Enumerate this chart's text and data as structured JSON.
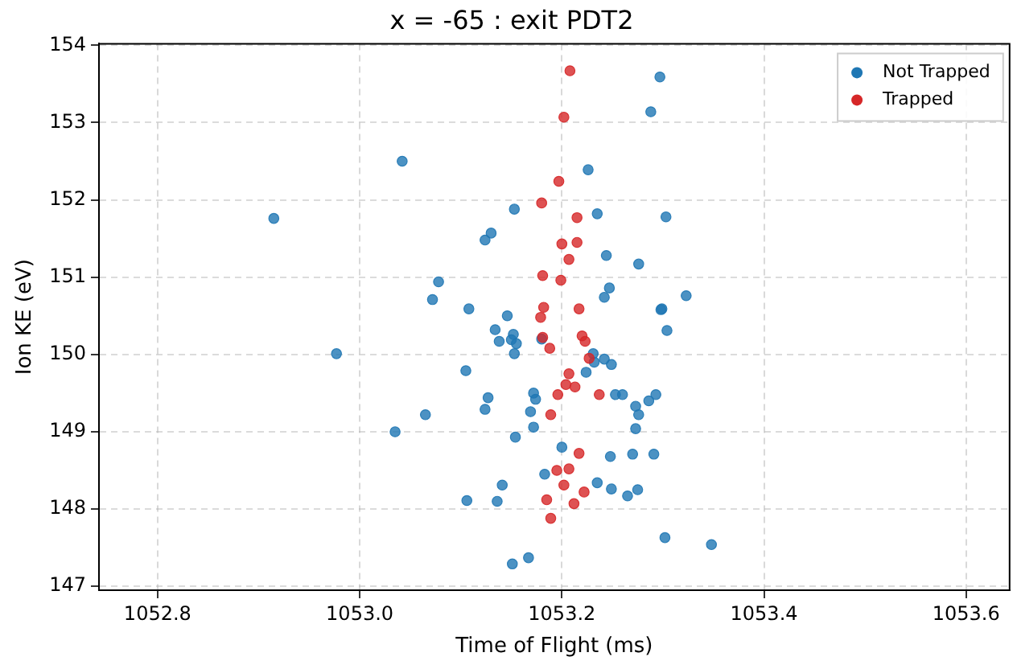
{
  "chart_data": {
    "type": "scatter",
    "title": "x = -65 : exit PDT2",
    "xlabel": "Time of Flight (ms)",
    "ylabel": "Ion KE (eV)",
    "xlim": [
      1052.742,
      1053.643
    ],
    "ylim": [
      146.95,
      154.02
    ],
    "xticks": [
      1052.8,
      {
        "value": 1053.0,
        "label": "1053.0"
      },
      1053.2,
      1053.4,
      1053.6
    ],
    "yticks": [
      147,
      148,
      149,
      150,
      151,
      152,
      153,
      154
    ],
    "grid": true,
    "legend": "top right",
    "marker": "circle",
    "series": [
      {
        "name": "Not Trapped",
        "color": "#1f77b4",
        "x": [
          1052.915,
          1053.042,
          1053.226,
          1053.153,
          1053.235,
          1053.13,
          1053.124,
          1053.244,
          1053.276,
          1053.078,
          1053.247,
          1053.242,
          1053.072,
          1053.108,
          1053.146,
          1053.297,
          1053.288,
          1053.303,
          1053.323,
          1053.299,
          1053.298,
          1053.134,
          1053.152,
          1053.138,
          1053.15,
          1053.155,
          1053.153,
          1053.18,
          1052.977,
          1053.231,
          1053.232,
          1053.242,
          1053.249,
          1053.105,
          1053.224,
          1053.172,
          1053.174,
          1053.127,
          1053.124,
          1053.169,
          1053.065,
          1053.172,
          1053.035,
          1053.154,
          1053.253,
          1053.26,
          1053.273,
          1053.276,
          1053.273,
          1053.286,
          1053.293,
          1053.2,
          1053.248,
          1053.27,
          1053.291,
          1053.183,
          1053.141,
          1053.235,
          1053.249,
          1053.265,
          1053.275,
          1053.106,
          1053.136,
          1053.151,
          1053.167,
          1053.304,
          1053.302,
          1053.348
        ],
        "values": [
          151.76,
          152.5,
          152.39,
          151.88,
          151.82,
          151.57,
          151.48,
          151.28,
          151.17,
          150.94,
          150.86,
          150.74,
          150.71,
          150.59,
          150.5,
          153.59,
          153.14,
          151.78,
          150.76,
          150.59,
          150.58,
          150.32,
          150.26,
          150.17,
          150.19,
          150.14,
          150.01,
          150.2,
          150.01,
          150.01,
          149.9,
          149.94,
          149.87,
          149.79,
          149.77,
          149.5,
          149.42,
          149.44,
          149.29,
          149.26,
          149.22,
          149.06,
          149.0,
          148.93,
          149.48,
          149.48,
          149.33,
          149.22,
          149.04,
          149.4,
          149.48,
          148.8,
          148.68,
          148.71,
          148.71,
          148.45,
          148.31,
          148.34,
          148.26,
          148.17,
          148.25,
          148.11,
          148.1,
          147.29,
          147.37,
          150.31,
          147.63,
          147.54
        ]
      },
      {
        "name": "Trapped",
        "color": "#d62728",
        "x": [
          1053.208,
          1053.202,
          1053.197,
          1053.18,
          1053.215,
          1053.2,
          1053.215,
          1053.207,
          1053.181,
          1053.199,
          1053.182,
          1053.217,
          1053.179,
          1053.181,
          1053.188,
          1053.22,
          1053.223,
          1053.227,
          1053.207,
          1053.204,
          1053.213,
          1053.196,
          1053.237,
          1053.189,
          1053.217,
          1053.195,
          1053.207,
          1053.202,
          1053.222,
          1053.185,
          1053.212,
          1053.189
        ],
        "values": [
          153.67,
          153.07,
          152.24,
          151.96,
          151.77,
          151.43,
          151.45,
          151.23,
          151.02,
          150.96,
          150.61,
          150.59,
          150.48,
          150.22,
          150.08,
          150.24,
          150.17,
          149.95,
          149.75,
          149.61,
          149.58,
          149.48,
          149.48,
          149.22,
          148.72,
          148.5,
          148.52,
          148.31,
          148.22,
          148.12,
          148.07,
          147.88
        ]
      }
    ]
  }
}
